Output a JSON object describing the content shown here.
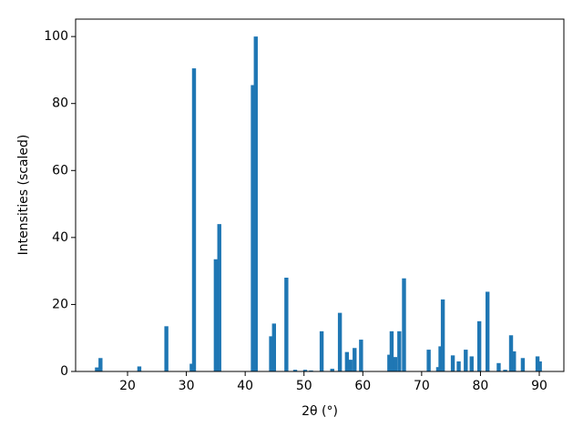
{
  "chart_data": {
    "type": "bar",
    "xlabel": "2θ (°)",
    "ylabel": "Intensities (scaled)",
    "x": [
      14.8,
      15.4,
      22.0,
      26.6,
      30.9,
      31.3,
      35.0,
      35.6,
      41.3,
      41.8,
      44.4,
      44.9,
      47.0,
      48.5,
      50.2,
      51.2,
      53.0,
      54.8,
      56.1,
      57.3,
      57.9,
      58.6,
      59.7,
      64.5,
      64.9,
      65.5,
      66.2,
      67.0,
      71.2,
      72.8,
      73.2,
      73.6,
      75.3,
      76.3,
      77.5,
      78.5,
      79.8,
      81.2,
      83.1,
      84.2,
      85.2,
      85.7,
      87.2,
      89.7,
      90.1
    ],
    "values": [
      1.2,
      4.0,
      1.5,
      13.5,
      2.3,
      90.5,
      33.5,
      44,
      85.5,
      100,
      10.5,
      14.3,
      28,
      0.5,
      0.5,
      0.3,
      12,
      0.8,
      17.5,
      5.8,
      3.5,
      7,
      9.5,
      5,
      12,
      4.3,
      12,
      27.8,
      6.5,
      1.3,
      7.5,
      21.5,
      4.8,
      3,
      6.5,
      4.5,
      15,
      23.8,
      2.5,
      0.5,
      10.8,
      6,
      4,
      4.5,
      3
    ],
    "color": "#1f77b4",
    "xlim": [
      11.17,
      94.18
    ],
    "xticks": [
      20,
      30,
      40,
      50,
      60,
      70,
      80,
      90
    ],
    "ylim": [
      0,
      105.2
    ],
    "yticks": [
      0,
      20,
      40,
      60,
      80,
      100
    ],
    "grid": false
  }
}
